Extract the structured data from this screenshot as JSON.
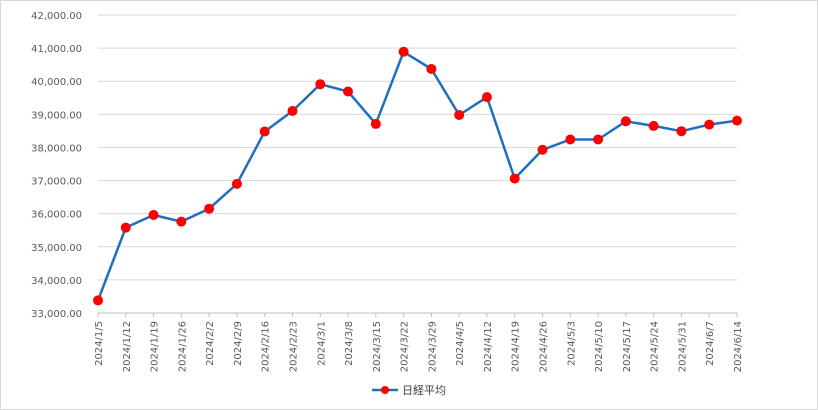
{
  "chart_data": {
    "type": "line",
    "title": "",
    "xlabel": "",
    "ylabel": "",
    "ylim": [
      33000,
      42000
    ],
    "y_ticks": [
      "33,000.00",
      "34,000.00",
      "35,000.00",
      "36,000.00",
      "37,000.00",
      "38,000.00",
      "39,000.00",
      "40,000.00",
      "41,000.00",
      "42,000.00"
    ],
    "categories": [
      "2024/1/5",
      "2024/1/12",
      "2024/1/19",
      "2024/1/26",
      "2024/2/2",
      "2024/2/9",
      "2024/2/16",
      "2024/2/23",
      "2024/3/1",
      "2024/3/8",
      "2024/3/15",
      "2024/3/22",
      "2024/3/29",
      "2024/4/5",
      "2024/4/12",
      "2024/4/19",
      "2024/4/26",
      "2024/5/3",
      "2024/5/10",
      "2024/5/17",
      "2024/5/24",
      "2024/5/31",
      "2024/6/7",
      "2024/6/14"
    ],
    "series": [
      {
        "name": "日経平均",
        "color": "#1f6fc1",
        "marker_color": "#ff0000",
        "values": [
          33380,
          35580,
          35960,
          35760,
          36150,
          36900,
          38480,
          39100,
          39910,
          39690,
          38710,
          40890,
          40370,
          38980,
          39520,
          37060,
          37930,
          38240,
          38240,
          38790,
          38650,
          38490,
          38690,
          38810
        ]
      }
    ],
    "grid": true,
    "legend_position": "bottom"
  }
}
